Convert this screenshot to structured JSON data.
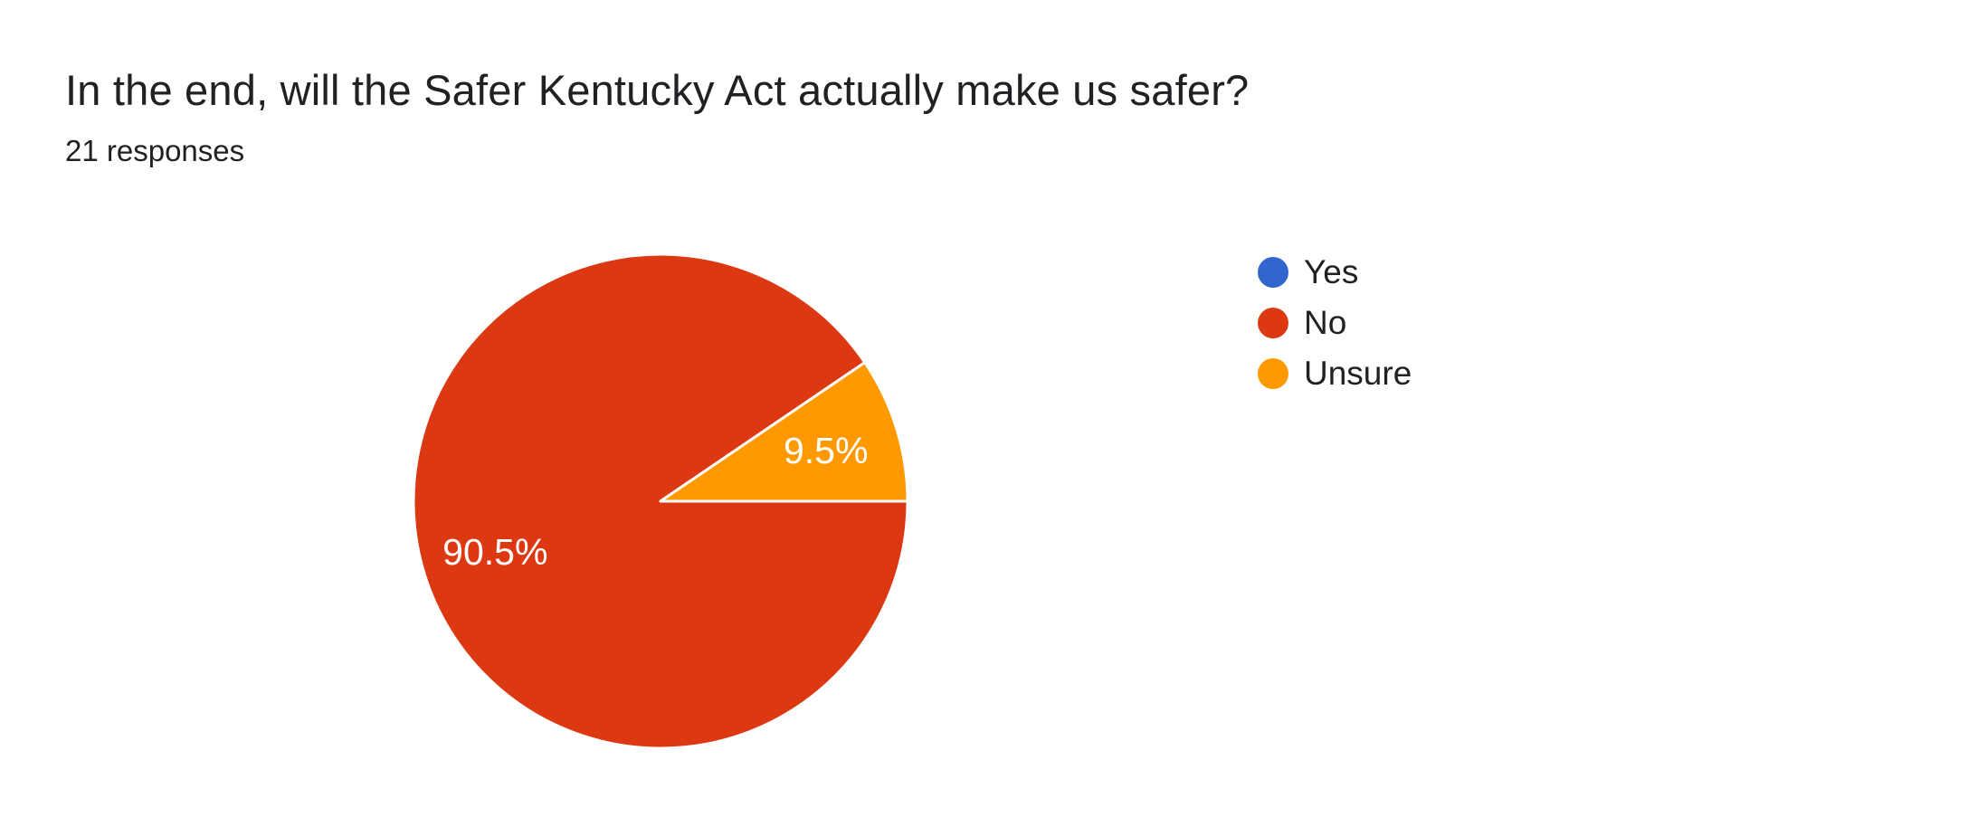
{
  "header": {
    "title": "In the end, will the Safer Kentucky Act actually make us safer?",
    "responses_text": "21 responses"
  },
  "chart_data": {
    "type": "pie",
    "title": "In the end, will the Safer Kentucky Act actually make us safer?",
    "subtitle": "21 responses",
    "total_responses": 21,
    "categories": [
      "Yes",
      "No",
      "Unsure"
    ],
    "values": [
      0,
      90.5,
      9.5
    ],
    "unit": "percent",
    "slice_labels": [
      "",
      "90.5%",
      "9.5%"
    ],
    "colors": [
      "#3366CC",
      "#DC3912",
      "#FF9900"
    ],
    "legend_position": "right",
    "start_angle_deg": 0,
    "direction": "clockwise",
    "separator_color": "#FFFFFF",
    "label_color": "#FFFFFF",
    "background_color": "#FFFFFF",
    "text_color": "#202124"
  }
}
